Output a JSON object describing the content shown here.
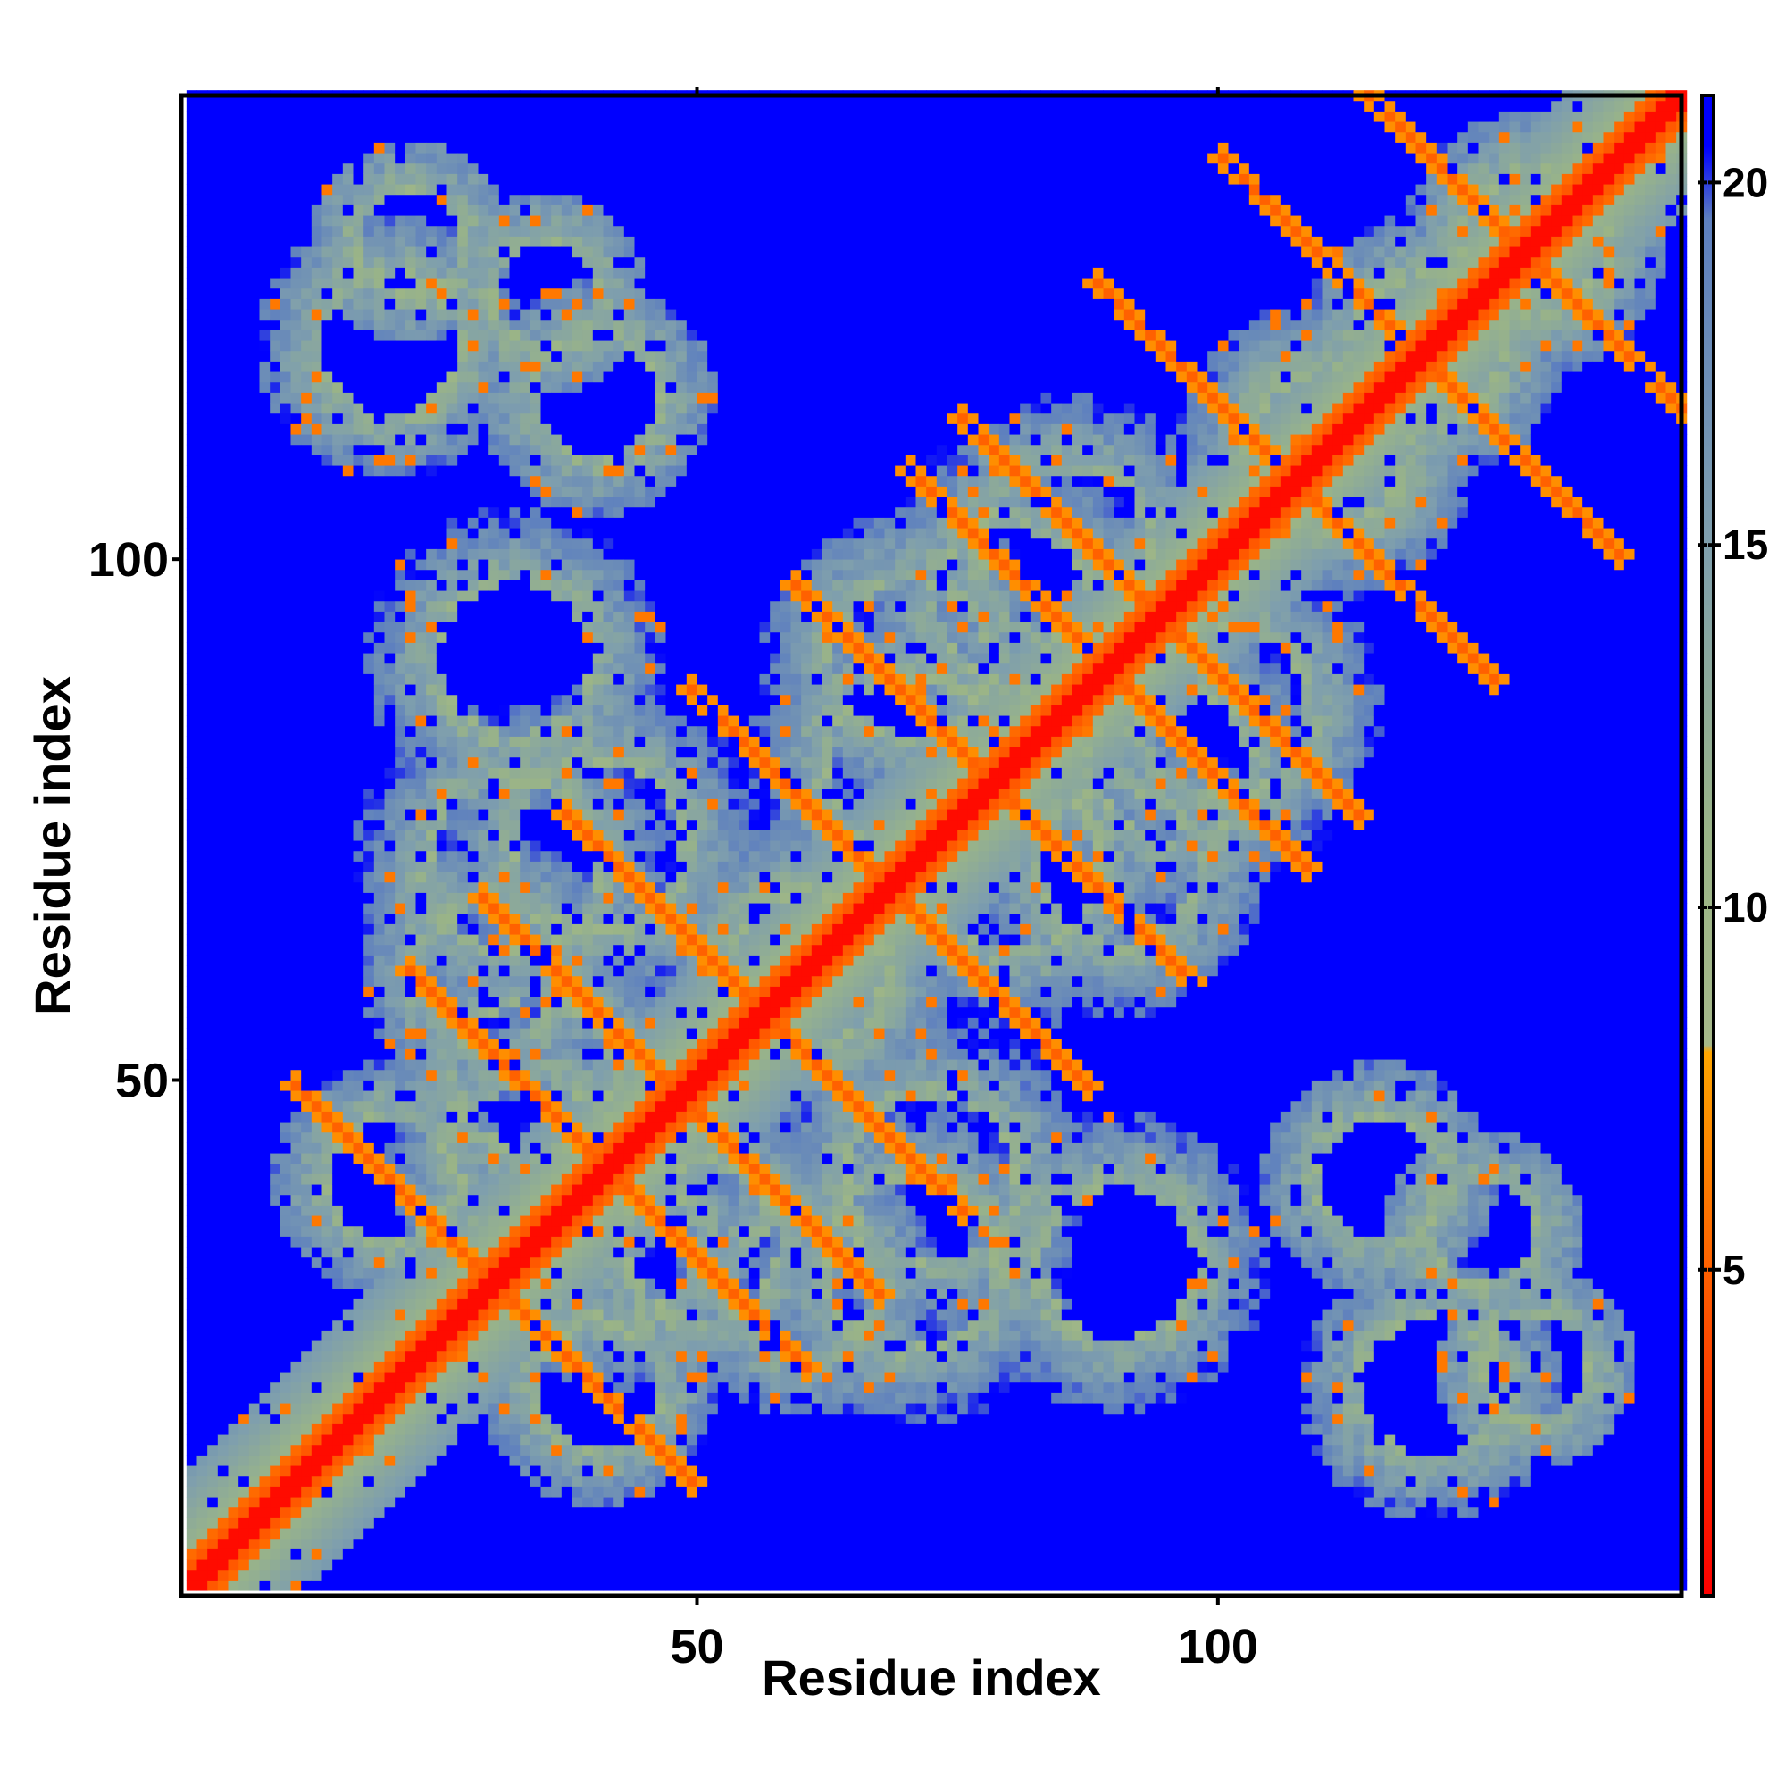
{
  "chart_data": {
    "type": "heatmap",
    "title": "",
    "xlabel": "Residue index",
    "ylabel": "Residue index",
    "n_residues": 144,
    "xlim": [
      1,
      144
    ],
    "ylim": [
      1,
      144
    ],
    "x_ticks": [
      {
        "value": 50,
        "label": "50"
      },
      {
        "value": 100,
        "label": "100"
      }
    ],
    "y_ticks": [
      {
        "value": 50,
        "label": "50"
      },
      {
        "value": 100,
        "label": "100"
      }
    ],
    "colorbar": {
      "range": [
        0.5,
        21.2
      ],
      "ticks": [
        {
          "value": 5,
          "label": "5"
        },
        {
          "value": 10,
          "label": "10"
        },
        {
          "value": 15,
          "label": "15"
        },
        {
          "value": 20,
          "label": "20"
        }
      ],
      "stops": [
        {
          "value": 0.5,
          "color": "#ff0000"
        },
        {
          "value": 4.0,
          "color": "#ff4a00"
        },
        {
          "value": 8.0,
          "color": "#ffa500"
        },
        {
          "value": 8.1,
          "color": "#a6b98a"
        },
        {
          "value": 11.0,
          "color": "#9ab487"
        },
        {
          "value": 15.0,
          "color": "#7f9fad"
        },
        {
          "value": 19.5,
          "color": "#5d7fbf"
        },
        {
          "value": 20.5,
          "color": "#0000ff"
        }
      ]
    },
    "grid": false,
    "colors": {
      "background_far": "#0000ff",
      "diagonal": "#ff0000",
      "contact": "#ffa500",
      "mid": "#9ab487"
    }
  }
}
